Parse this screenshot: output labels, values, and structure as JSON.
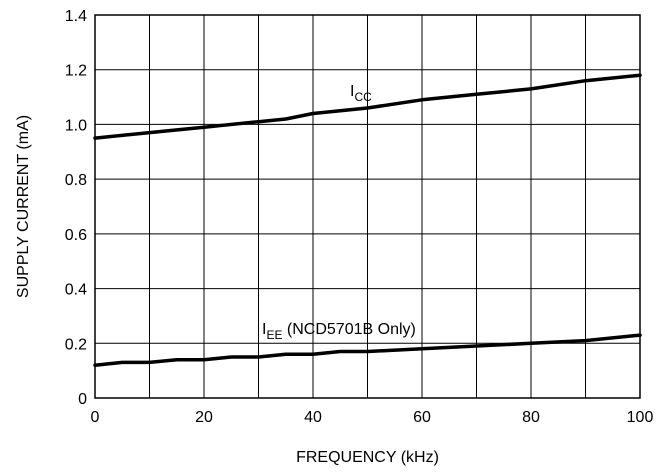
{
  "chart_data": {
    "type": "line",
    "xlabel": "FREQUENCY (kHz)",
    "ylabel": "SUPPLY CURRENT (mA)",
    "xlim": [
      0,
      100
    ],
    "ylim": [
      0,
      1.4
    ],
    "x_ticks": [
      "0",
      "20",
      "40",
      "60",
      "80",
      "100"
    ],
    "y_ticks": [
      "0",
      "0.2",
      "0.4",
      "0.6",
      "0.8",
      "1.0",
      "1.2",
      "1.4"
    ],
    "grid": true,
    "series": [
      {
        "name": "ICC",
        "x": [
          0,
          10,
          20,
          30,
          35,
          40,
          50,
          60,
          70,
          80,
          90,
          100
        ],
        "y": [
          0.95,
          0.97,
          0.99,
          1.01,
          1.02,
          1.04,
          1.06,
          1.09,
          1.11,
          1.13,
          1.16,
          1.18
        ]
      },
      {
        "name": "IEE (NCD5701B Only)",
        "x": [
          0,
          5,
          10,
          15,
          20,
          25,
          30,
          35,
          40,
          45,
          50,
          60,
          70,
          80,
          90,
          100
        ],
        "y": [
          0.12,
          0.13,
          0.13,
          0.14,
          0.14,
          0.15,
          0.15,
          0.16,
          0.16,
          0.17,
          0.17,
          0.18,
          0.19,
          0.2,
          0.21,
          0.23
        ]
      }
    ],
    "annotations": {
      "icc": {
        "main": "I",
        "sub": "CC",
        "rest": ""
      },
      "iee": {
        "main": "I",
        "sub": "EE",
        "rest": " (NCD5701B Only)"
      }
    }
  }
}
